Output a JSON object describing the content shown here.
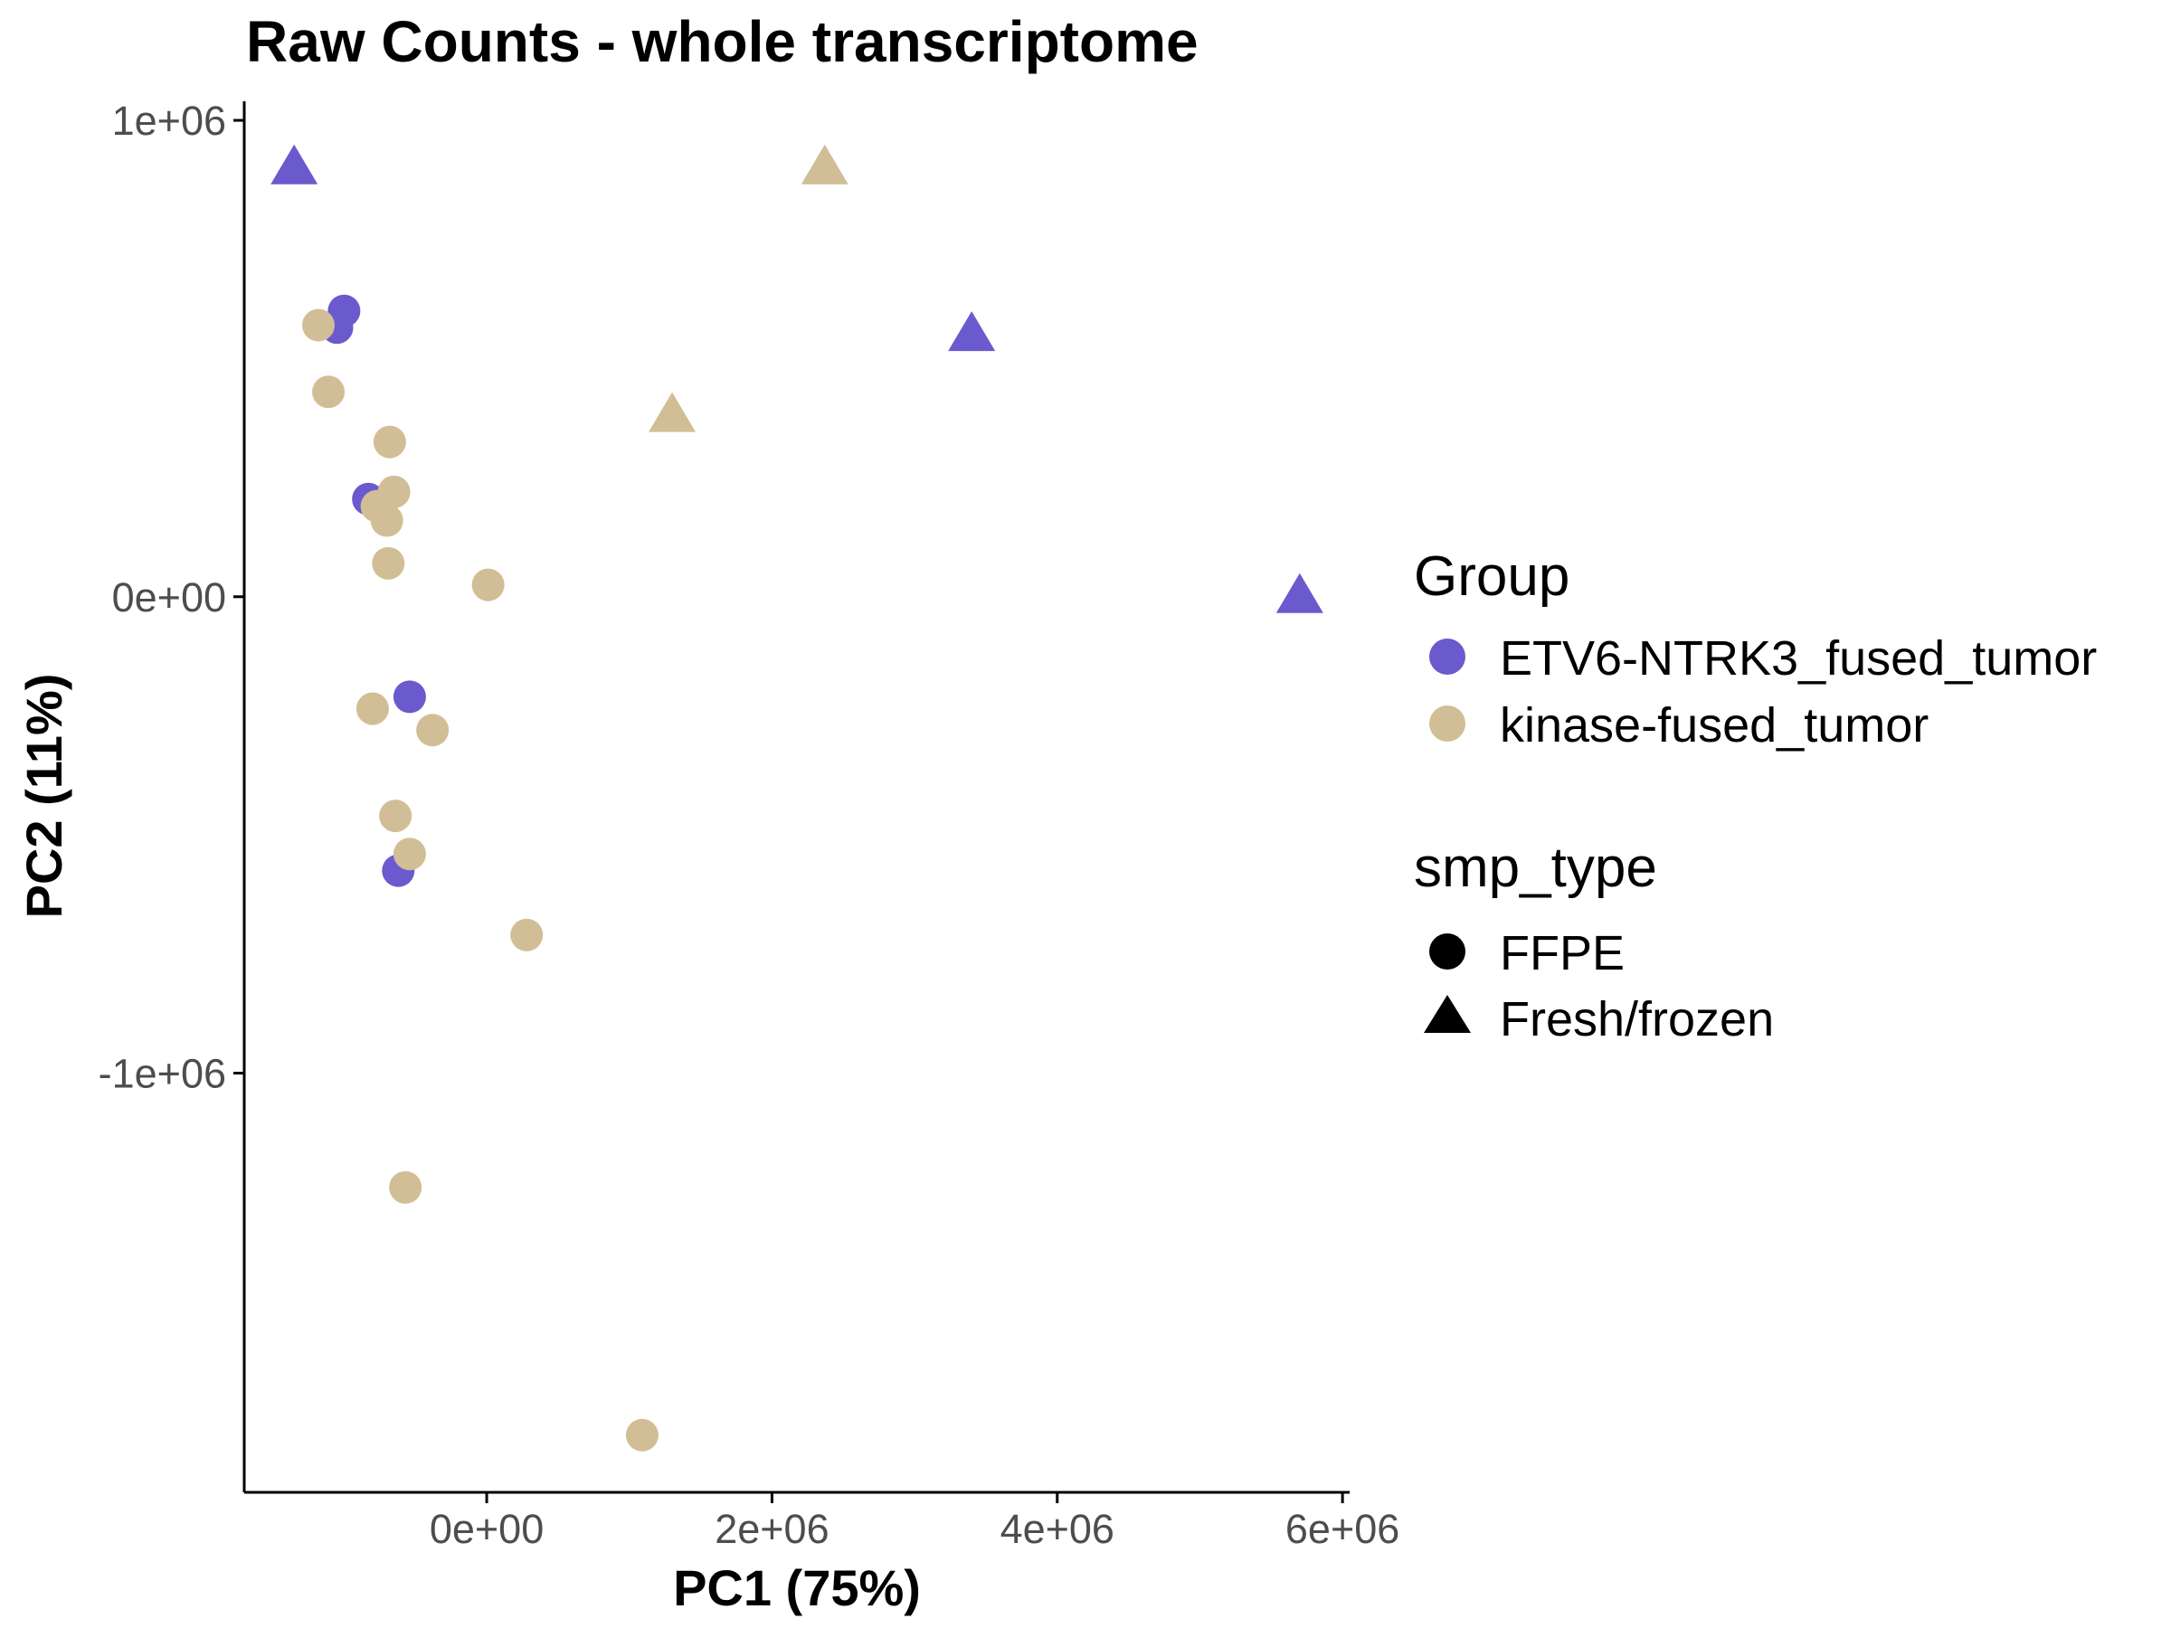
{
  "chart_data": {
    "type": "scatter",
    "title": "Raw Counts - whole transcriptome",
    "xlabel": "PC1 (75%)",
    "ylabel": "PC2 (11%)",
    "xlim": [
      -1700000,
      6050000
    ],
    "ylim": [
      -1880000,
      1040000
    ],
    "x_ticks": [
      {
        "value": 0,
        "label": "0e+00"
      },
      {
        "value": 2000000,
        "label": "2e+06"
      },
      {
        "value": 4000000,
        "label": "4e+06"
      },
      {
        "value": 6000000,
        "label": "6e+06"
      }
    ],
    "y_ticks": [
      {
        "value": 1000000,
        "label": "1e+06"
      },
      {
        "value": 0,
        "label": "0e+00"
      },
      {
        "value": -1000000,
        "label": "-1e+06"
      }
    ],
    "grid": false,
    "legend_position": "right",
    "legend": {
      "color_title": "Group",
      "color_entries": [
        {
          "label": "ETV6-NTRK3_fused_tumor",
          "color": "#6A5ACD"
        },
        {
          "label": "kinase-fused_tumor",
          "color": "#D2BE96"
        }
      ],
      "shape_title": "smp_type",
      "shape_entries": [
        {
          "label": "FFPE",
          "shape": "circle"
        },
        {
          "label": "Fresh/frozen",
          "shape": "triangle"
        }
      ]
    },
    "points": [
      {
        "x": -1350000,
        "y": 900000,
        "group": "ETV6-NTRK3_fused_tumor",
        "smp_type": "Fresh/frozen"
      },
      {
        "x": 2370000,
        "y": 900000,
        "group": "kinase-fused_tumor",
        "smp_type": "Fresh/frozen"
      },
      {
        "x": 3400000,
        "y": 550000,
        "group": "ETV6-NTRK3_fused_tumor",
        "smp_type": "Fresh/frozen"
      },
      {
        "x": 1300000,
        "y": 380000,
        "group": "kinase-fused_tumor",
        "smp_type": "Fresh/frozen"
      },
      {
        "x": 5700000,
        "y": 0,
        "group": "ETV6-NTRK3_fused_tumor",
        "smp_type": "Fresh/frozen"
      },
      {
        "x": -1000000,
        "y": 600000,
        "group": "ETV6-NTRK3_fused_tumor",
        "smp_type": "FFPE"
      },
      {
        "x": -1050000,
        "y": 565000,
        "group": "ETV6-NTRK3_fused_tumor",
        "smp_type": "FFPE"
      },
      {
        "x": -1180000,
        "y": 570000,
        "group": "kinase-fused_tumor",
        "smp_type": "FFPE"
      },
      {
        "x": -1110000,
        "y": 430000,
        "group": "kinase-fused_tumor",
        "smp_type": "FFPE"
      },
      {
        "x": -680000,
        "y": 325000,
        "group": "kinase-fused_tumor",
        "smp_type": "FFPE"
      },
      {
        "x": -830000,
        "y": 205000,
        "group": "ETV6-NTRK3_fused_tumor",
        "smp_type": "FFPE"
      },
      {
        "x": -650000,
        "y": 220000,
        "group": "kinase-fused_tumor",
        "smp_type": "FFPE"
      },
      {
        "x": -770000,
        "y": 190000,
        "group": "kinase-fused_tumor",
        "smp_type": "FFPE"
      },
      {
        "x": -700000,
        "y": 160000,
        "group": "kinase-fused_tumor",
        "smp_type": "FFPE"
      },
      {
        "x": -690000,
        "y": 70000,
        "group": "kinase-fused_tumor",
        "smp_type": "FFPE"
      },
      {
        "x": 10000,
        "y": 25000,
        "group": "kinase-fused_tumor",
        "smp_type": "FFPE"
      },
      {
        "x": -540000,
        "y": -210000,
        "group": "ETV6-NTRK3_fused_tumor",
        "smp_type": "FFPE"
      },
      {
        "x": -800000,
        "y": -235000,
        "group": "kinase-fused_tumor",
        "smp_type": "FFPE"
      },
      {
        "x": -380000,
        "y": -280000,
        "group": "kinase-fused_tumor",
        "smp_type": "FFPE"
      },
      {
        "x": -640000,
        "y": -460000,
        "group": "kinase-fused_tumor",
        "smp_type": "FFPE"
      },
      {
        "x": -620000,
        "y": -575000,
        "group": "ETV6-NTRK3_fused_tumor",
        "smp_type": "FFPE"
      },
      {
        "x": -540000,
        "y": -540000,
        "group": "kinase-fused_tumor",
        "smp_type": "FFPE"
      },
      {
        "x": 280000,
        "y": -710000,
        "group": "kinase-fused_tumor",
        "smp_type": "FFPE"
      },
      {
        "x": -570000,
        "y": -1240000,
        "group": "kinase-fused_tumor",
        "smp_type": "FFPE"
      },
      {
        "x": 1090000,
        "y": -1760000,
        "group": "kinase-fused_tumor",
        "smp_type": "FFPE"
      }
    ]
  }
}
